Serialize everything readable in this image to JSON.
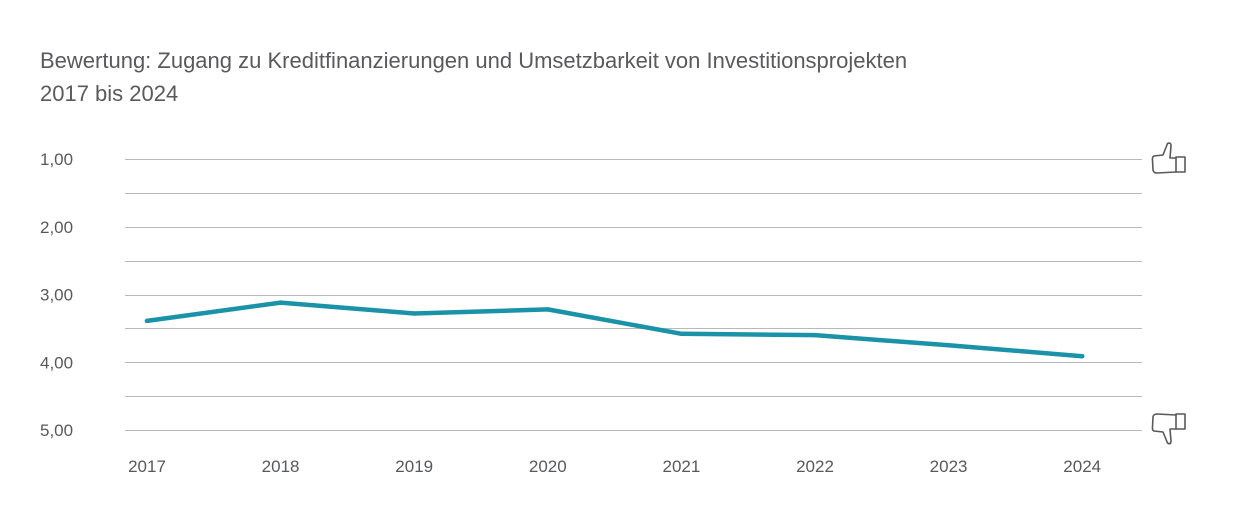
{
  "chart_data": {
    "type": "line",
    "title": "Bewertung: Zugang zu Kreditfinanzierungen und Umsetzbarkeit von Investitionsprojekten",
    "subtitle": "2017 bis 2024",
    "xlabel": "",
    "ylabel": "",
    "categories": [
      "2017",
      "2018",
      "2019",
      "2020",
      "2021",
      "2022",
      "2023",
      "2024"
    ],
    "series": [
      {
        "values": [
          3.39,
          3.12,
          3.28,
          3.22,
          3.58,
          3.6,
          3.75,
          3.91
        ],
        "color": "#1a93a8"
      }
    ],
    "y_ticks": [
      "1,00",
      "2,00",
      "3,00",
      "4,00",
      "5,00"
    ],
    "ylim": [
      1,
      5
    ],
    "y_inverted": true,
    "grid": true,
    "gridline_step": 0.5,
    "icons": {
      "top": "thumbs-up-icon",
      "bottom": "thumbs-down-icon"
    },
    "colors": {
      "line": "#1a93a8",
      "grid": "#b9b9bb",
      "text": "#58595b"
    }
  }
}
